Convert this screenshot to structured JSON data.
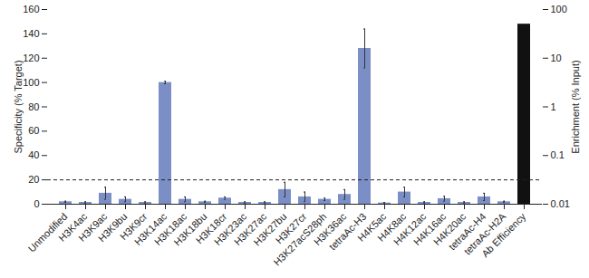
{
  "chart_data": {
    "type": "bar",
    "categories": [
      "Unmodified",
      "H3K4ac",
      "H3K9ac",
      "H3K9bu",
      "H3K9cr",
      "H3K14ac",
      "H3K18ac",
      "H3K18bu",
      "H3K18cr",
      "H3K23ac",
      "H3K27ac",
      "H3K27bu",
      "H3K27cr",
      "H3K27acS28ph",
      "H3K36ac",
      "tetraAc-H3",
      "H4K5ac",
      "H4K8ac",
      "H4K12ac",
      "H4K16ac",
      "H4K20ac",
      "tetraAc-H4",
      "tetraAc-H2A",
      "Ab Efficiency"
    ],
    "series": [
      {
        "color": "#7b8fc6",
        "values": [
          2,
          1.5,
          9,
          4,
          1.5,
          100,
          4,
          2,
          5,
          1.5,
          1.5,
          12,
          6,
          4,
          8,
          128,
          1,
          10,
          1.5,
          4.5,
          1.5,
          6,
          2,
          null
        ],
        "errors": [
          0.5,
          0.5,
          5,
          2,
          0.5,
          1,
          2,
          0.5,
          1,
          0.5,
          0.5,
          6,
          4,
          1,
          4,
          16,
          0.5,
          4,
          0.5,
          2,
          0.5,
          3,
          0.5,
          null
        ]
      },
      {
        "axis": "y2",
        "color": "#111111",
        "values": [
          null,
          null,
          null,
          null,
          null,
          null,
          null,
          null,
          null,
          null,
          null,
          null,
          null,
          null,
          null,
          null,
          null,
          null,
          null,
          null,
          null,
          null,
          null,
          50
        ]
      }
    ],
    "y_label": "Specificity (% Target)",
    "y2_label": "Enrichment (% Input)",
    "ylim": [
      0,
      160
    ],
    "yticks": [
      0,
      20,
      40,
      60,
      80,
      100,
      120,
      140,
      160
    ],
    "y2lim": [
      0.01,
      100
    ],
    "y2ticks": [
      0.01,
      0.1,
      1,
      10,
      100
    ],
    "log": "y2",
    "reference_line": {
      "value": 20,
      "line_style": "dashed"
    }
  }
}
